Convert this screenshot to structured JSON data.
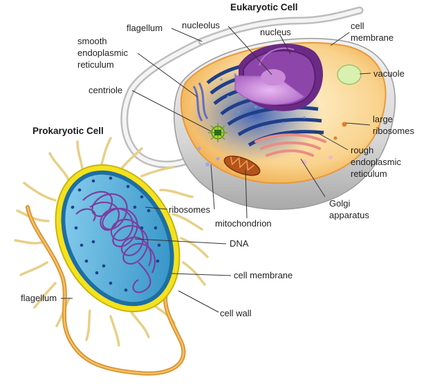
{
  "eukaryotic": {
    "title": "Eukaryotic Cell",
    "labels": {
      "flagellum": "flagellum",
      "nucleolus": "nucleolus",
      "nucleus": "nucleus",
      "cell_membrane_1": "cell",
      "cell_membrane_2": "membrane",
      "smooth_er_1": "smooth",
      "smooth_er_2": "endoplasmic",
      "smooth_er_3": "reticulum",
      "vacuole": "vacuole",
      "centriole": "centriole",
      "large_ribosomes_1": "large",
      "large_ribosomes_2": "ribosomes",
      "rough_er_1": "rough",
      "rough_er_2": "endoplasmic",
      "rough_er_3": "reticulum",
      "golgi_1": "Golgi",
      "golgi_2": "apparatus",
      "ribosomes": "ribosomes",
      "mitochondrion": "mitochondrion"
    }
  },
  "prokaryotic": {
    "title": "Prokaryotic Cell",
    "labels": {
      "dna": "DNA",
      "cell_membrane": "cell membrane",
      "flagellum": "flagellum",
      "cell_wall": "cell wall"
    }
  },
  "colors": {
    "cytoplasm": "#f7c77a",
    "shell": "#d9d9d9",
    "nucleus": "#8b3fa0",
    "er": "#2a4f9e",
    "golgi": "#f1a39b",
    "bacteria_wall": "#f3e11c",
    "bacteria_inner": "#3fa9d8",
    "dna": "#7b3fa0",
    "flagellum": "#d8932c"
  }
}
